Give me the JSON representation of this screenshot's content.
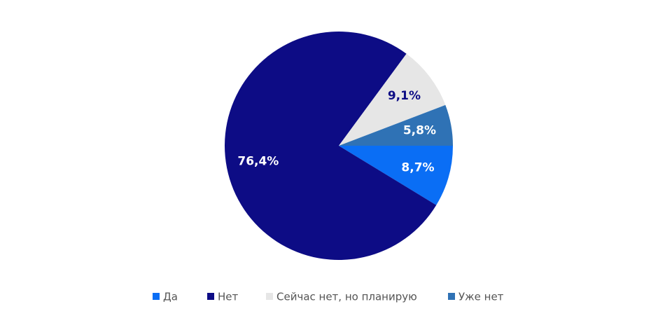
{
  "chart_data": {
    "type": "pie",
    "categories": [
      "Да",
      "Нет",
      "Сейчас нет, но планирую",
      "Уже нет"
    ],
    "values": [
      8.7,
      76.4,
      9.1,
      5.8
    ],
    "value_labels": [
      "8,7%",
      "76,4%",
      "9,1%",
      "5,8%"
    ],
    "colors": [
      "#0a6ef5",
      "#0d0c85",
      "#e6e6e6",
      "#2f72b5"
    ],
    "label_colors": [
      "#ffffff",
      "#ffffff",
      "#0d0c85",
      "#ffffff"
    ],
    "legend": "bottom"
  }
}
